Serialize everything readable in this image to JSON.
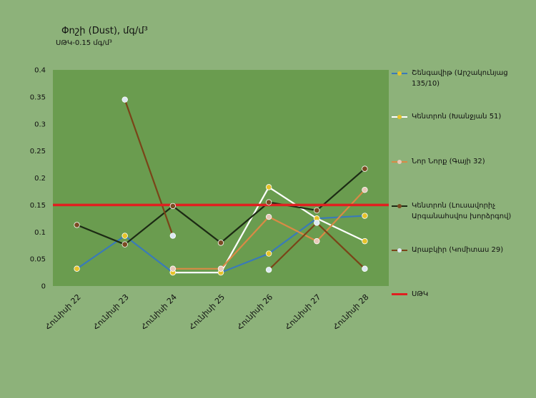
{
  "chart_data": {
    "type": "line",
    "title": "Փոշի (Dust), մգ/մ³",
    "subtitle": "ՍԹԿ-0.15 մգ/մ³",
    "categories": [
      "Հունիսի 22",
      "Հունիսի 23",
      "Հունիսի 24",
      "Հունիսի 25",
      "Հունիսի 26",
      "Հունիսի 27",
      "Հունիսի 28"
    ],
    "ylim": [
      0,
      0.4
    ],
    "yticks": [
      "0",
      "0.05",
      "0.1",
      "0.15",
      "0.2",
      "0.25",
      "0.3",
      "0.35",
      "0.4"
    ],
    "grid": false,
    "legend_position": "right",
    "background_color": "#8db27a",
    "plot_color": "#6a9c4f",
    "series": [
      {
        "name": "Շենգավիթ (Արշակունյաց 135/10)",
        "color": "#3a7ab8",
        "marker": "#e6c32a",
        "values": [
          0.032,
          0.093,
          0.025,
          0.025,
          0.06,
          0.125,
          0.13
        ]
      },
      {
        "name": "Կենտրոն (Խանջյան 51)",
        "color": "#ffffff",
        "marker": "#e6c32a",
        "values": [
          null,
          null,
          0.025,
          0.025,
          0.183,
          0.125,
          0.083
        ]
      },
      {
        "name": "Նոր Նորք (Գայի 32)",
        "color": "#d98a45",
        "marker": "#e8c9b8",
        "values": [
          null,
          null,
          0.032,
          0.032,
          0.128,
          0.083,
          0.178
        ]
      },
      {
        "name": "Կենտրոն (Լուսավորիչ Արգանահսվոս խորձրգով)",
        "color": "#1c2a14",
        "marker": "#7a4a22",
        "values": [
          0.113,
          0.077,
          0.148,
          0.08,
          0.155,
          0.14,
          0.217
        ]
      },
      {
        "name": "Արաբկիր (Կոմիտաս 29)",
        "color": "#7a4418",
        "marker": "#dce8f2",
        "values": [
          null,
          0.345,
          0.093,
          null,
          0.03,
          0.117,
          0.032
        ]
      }
    ],
    "reference_line": {
      "name": "ՍԹԿ",
      "value": 0.15,
      "color": "#e02020"
    }
  }
}
